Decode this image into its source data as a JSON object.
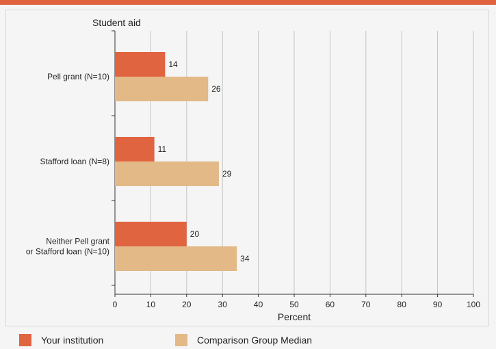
{
  "colors": {
    "accent_band": "#e06440",
    "your_institution": "#e06440",
    "comparison_median": "#e2b987",
    "grid": "#c4c4c4",
    "axis": "#333333"
  },
  "chart_data": {
    "type": "bar",
    "orientation": "horizontal",
    "title": "Student aid",
    "xlabel": "Percent",
    "ylabel": "",
    "xlim": [
      0,
      100
    ],
    "xticks": [
      "0",
      "10",
      "20",
      "30",
      "40",
      "50",
      "60",
      "70",
      "80",
      "90",
      "100"
    ],
    "categories": [
      [
        "Pell grant  (N=10)"
      ],
      [
        "Stafford loan (N=8)"
      ],
      [
        "Neither Pell grant",
        "or Stafford loan (N=10)"
      ]
    ],
    "series": [
      {
        "name": "Your institution",
        "values": [
          14,
          11,
          20
        ]
      },
      {
        "name": "Comparison Group Median",
        "values": [
          26,
          29,
          34
        ]
      }
    ],
    "grid": true,
    "legend_position": "bottom"
  }
}
